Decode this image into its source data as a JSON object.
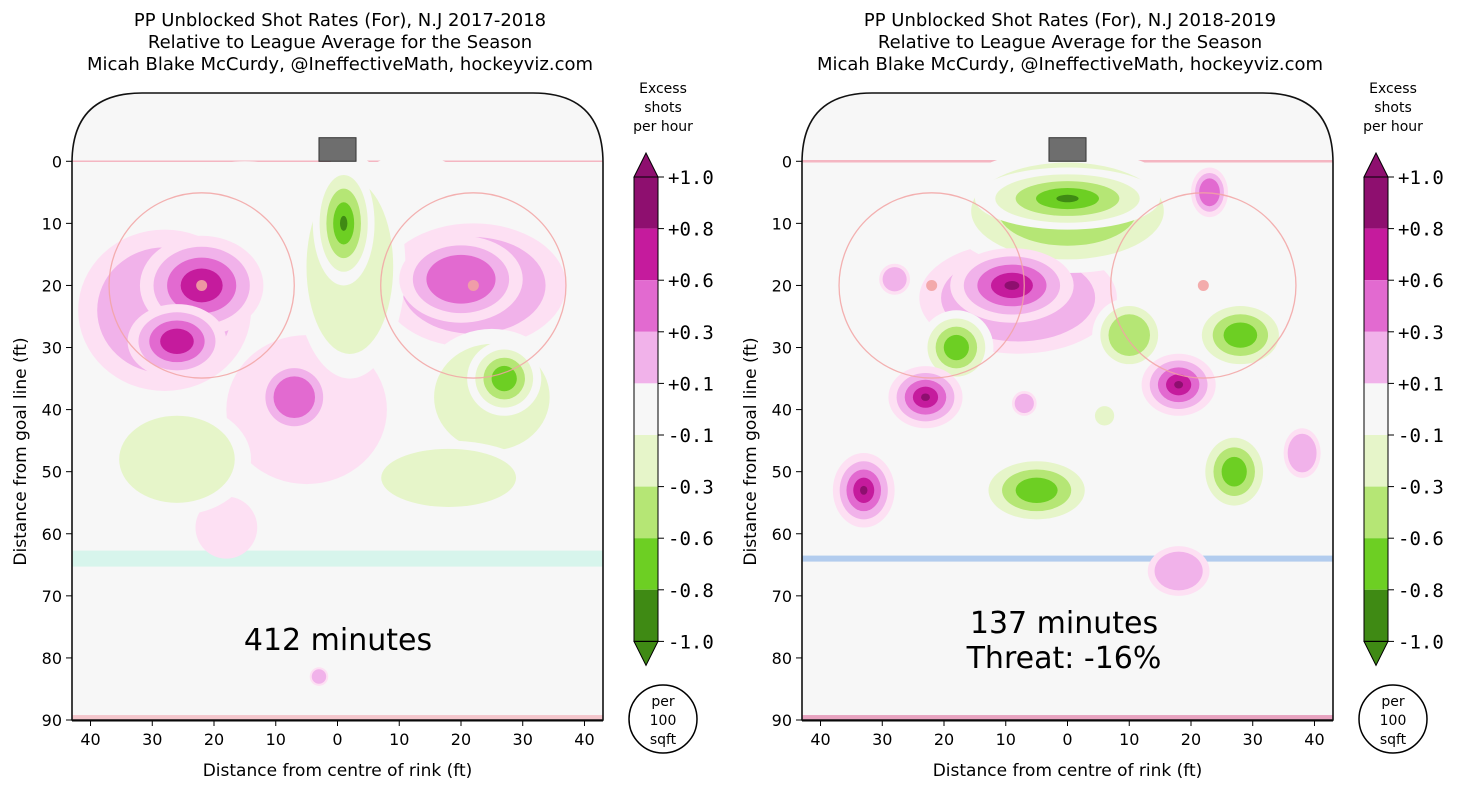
{
  "units_badge": [
    "per",
    "100",
    "sqft"
  ],
  "colorbar": {
    "title": [
      "Excess",
      "shots",
      "per hour"
    ],
    "levels": [
      "+1.0",
      "+0.8",
      "+0.6",
      "+0.3",
      "+0.1",
      "-0.1",
      "-0.3",
      "-0.6",
      "-0.8",
      "-1.0"
    ],
    "colors": [
      "#8e0f6f",
      "#c51b9d",
      "#e26ad0",
      "#f1b2ea",
      "#fde0f3",
      "#f7f7f7",
      "#e6f5c9",
      "#b5e675",
      "#6dcf23",
      "#3f8a14"
    ]
  },
  "rink_colors": {
    "ice": "#f7f7f7",
    "goal": "#6e6e6e",
    "goal_line": "#f4b6c2",
    "blue_line_left": "#d7f5ec",
    "blue_line_right": "#aac6ec",
    "center_line_left": "#f4c6cc",
    "center_line_right": "#e8a3c0",
    "circle": "#f2a3a3"
  },
  "chart_data": [
    {
      "type": "heatmap",
      "title": [
        "PP Unblocked Shot Rates (For), N.J 2017-2018",
        "Relative to League Average for the Season",
        "Micah Blake McCurdy, @IneffectiveMath, hockeyviz.com"
      ],
      "xlabel": "Distance from centre of rink (ft)",
      "ylabel": "Distance from goal line (ft)",
      "xlim": [
        -43,
        43
      ],
      "ylim": [
        90,
        -11
      ],
      "xticks": [
        -40,
        -30,
        -20,
        -10,
        0,
        10,
        20,
        30,
        40
      ],
      "xtick_labels": [
        "40",
        "30",
        "20",
        "10",
        "0",
        "10",
        "20",
        "30",
        "40"
      ],
      "yticks": [
        0,
        10,
        20,
        30,
        40,
        50,
        60,
        70,
        80,
        90
      ],
      "ytick_labels": [
        "0",
        "10",
        "20",
        "30",
        "40",
        "50",
        "60",
        "70",
        "80",
        "90"
      ],
      "annotation": [
        "412 minutes"
      ],
      "blue_line_y": 64,
      "blobs": [
        {
          "x": -22,
          "y": 20,
          "rx": 10,
          "ry": 8,
          "value": 0.7
        },
        {
          "x": -26,
          "y": 29,
          "rx": 8,
          "ry": 6,
          "value": 0.7
        },
        {
          "x": -28,
          "y": 24,
          "rx": 14,
          "ry": 13,
          "value": 0.3
        },
        {
          "x": 20,
          "y": 19,
          "rx": 10,
          "ry": 7,
          "value": 0.6
        },
        {
          "x": 22,
          "y": 20,
          "rx": 15,
          "ry": 10,
          "value": 0.3
        },
        {
          "x": -7,
          "y": 38,
          "rx": 6,
          "ry": 6,
          "value": 0.5
        },
        {
          "x": -5,
          "y": 40,
          "rx": 13,
          "ry": 12,
          "value": 0.12
        },
        {
          "x": -18,
          "y": 59,
          "rx": 5,
          "ry": 5,
          "value": 0.15
        },
        {
          "x": -3,
          "y": 83,
          "rx": 1.5,
          "ry": 1.5,
          "value": 0.2
        },
        {
          "x": 1,
          "y": 10,
          "rx": 5,
          "ry": 10,
          "value": -0.9
        },
        {
          "x": 2,
          "y": 17,
          "rx": 9,
          "ry": 18,
          "value": -0.4
        },
        {
          "x": 27,
          "y": 35,
          "rx": 6,
          "ry": 6,
          "value": -0.8
        },
        {
          "x": 25,
          "y": 38,
          "rx": 12,
          "ry": 11,
          "value": -0.35
        },
        {
          "x": -26,
          "y": 48,
          "rx": 12,
          "ry": 9,
          "value": -0.35
        },
        {
          "x": 18,
          "y": 51,
          "rx": 14,
          "ry": 6,
          "value": -0.4
        },
        {
          "x": -15,
          "y": 3,
          "rx": 8,
          "ry": 3,
          "value": -0.12
        },
        {
          "x": 12,
          "y": 3,
          "rx": 8,
          "ry": 4,
          "value": -0.12
        }
      ]
    },
    {
      "type": "heatmap",
      "title": [
        "PP Unblocked Shot Rates (For), N.J 2018-2019",
        "Relative to League Average for the Season",
        "Micah Blake McCurdy, @IneffectiveMath, hockeyviz.com"
      ],
      "xlabel": "Distance from centre of rink (ft)",
      "ylabel": "Distance from goal line (ft)",
      "xlim": [
        -43,
        43
      ],
      "ylim": [
        90,
        -11
      ],
      "xticks": [
        -40,
        -30,
        -20,
        -10,
        0,
        10,
        20,
        30,
        40
      ],
      "xtick_labels": [
        "40",
        "30",
        "20",
        "10",
        "0",
        "10",
        "20",
        "30",
        "40"
      ],
      "yticks": [
        0,
        10,
        20,
        30,
        40,
        50,
        60,
        70,
        80,
        90
      ],
      "ytick_labels": [
        "0",
        "10",
        "20",
        "30",
        "40",
        "50",
        "60",
        "70",
        "80",
        "90"
      ],
      "annotation": [
        "137 minutes",
        "Threat: -16%"
      ],
      "blue_line_y": 64,
      "blobs": [
        {
          "x": 0,
          "y": 6,
          "rx": 15,
          "ry": 5,
          "value": -1.0
        },
        {
          "x": 0,
          "y": 8,
          "rx": 20,
          "ry": 10,
          "value": -0.5
        },
        {
          "x": 10,
          "y": 28,
          "rx": 6,
          "ry": 6,
          "value": -0.6
        },
        {
          "x": -18,
          "y": 30,
          "rx": 6,
          "ry": 6,
          "value": -0.8
        },
        {
          "x": 28,
          "y": 28,
          "rx": 8,
          "ry": 6,
          "value": -0.8
        },
        {
          "x": -5,
          "y": 53,
          "rx": 10,
          "ry": 6,
          "value": -0.8
        },
        {
          "x": 27,
          "y": 50,
          "rx": 6,
          "ry": 7,
          "value": -0.8
        },
        {
          "x": 6,
          "y": 41,
          "rx": 2,
          "ry": 2,
          "value": -0.4
        },
        {
          "x": -9,
          "y": 20,
          "rx": 10,
          "ry": 6,
          "value": 0.95
        },
        {
          "x": -8,
          "y": 22,
          "rx": 16,
          "ry": 9,
          "value": 0.3
        },
        {
          "x": 18,
          "y": 36,
          "rx": 6,
          "ry": 5,
          "value": 0.9
        },
        {
          "x": -23,
          "y": 38,
          "rx": 6,
          "ry": 5,
          "value": 0.9
        },
        {
          "x": -33,
          "y": 53,
          "rx": 5,
          "ry": 6,
          "value": 0.9
        },
        {
          "x": 23,
          "y": 5,
          "rx": 3,
          "ry": 4,
          "value": 0.6
        },
        {
          "x": 18,
          "y": 66,
          "rx": 5,
          "ry": 4,
          "value": 0.25
        },
        {
          "x": -28,
          "y": 19,
          "rx": 2.5,
          "ry": 2.5,
          "value": 0.2
        },
        {
          "x": -7,
          "y": 39,
          "rx": 2,
          "ry": 2,
          "value": 0.2
        },
        {
          "x": 38,
          "y": 47,
          "rx": 3,
          "ry": 4,
          "value": 0.2
        }
      ]
    }
  ]
}
